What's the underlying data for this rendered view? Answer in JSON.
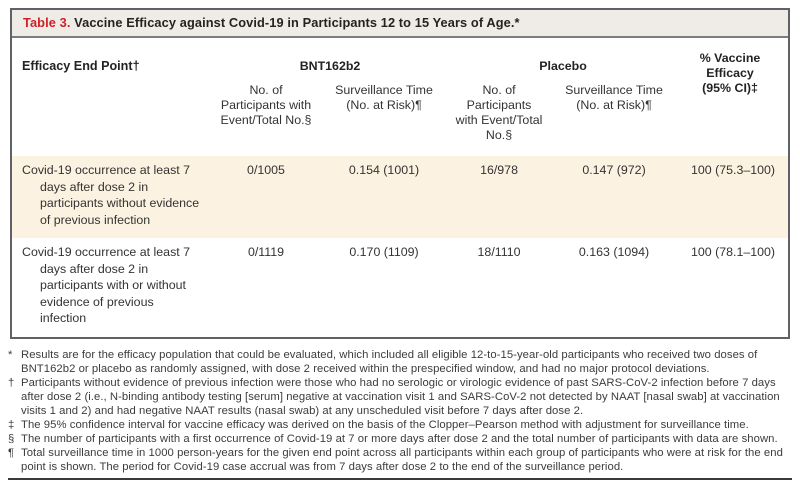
{
  "title": {
    "label": "Table 3.",
    "text": " Vaccine Efficacy against Covid-19 in Participants 12 to 15 Years of Age.*"
  },
  "colors": {
    "accent_red": "#ce2127",
    "title_bar_bg": "#efece7",
    "highlight_row_bg": "#fcf2e1",
    "border_dark": "#606164"
  },
  "table": {
    "row_header": "Efficacy End Point†",
    "group_bnt": "BNT162b2",
    "group_placebo": "Placebo",
    "efficacy_header_line1": "% Vaccine Efficacy",
    "efficacy_header_line2": "(95% CI)‡",
    "subheader_events": "No. of Participants with Event/Total No.§",
    "subheader_surveillance": "Surveillance Time (No. at Risk)¶",
    "rows": [
      {
        "label": "Covid-19 occurrence at least 7 days after dose 2 in participants without evidence of previous infection",
        "bnt_events": "0/1005",
        "bnt_surveillance": "0.154 (1001)",
        "placebo_events": "16/978",
        "placebo_surveillance": "0.147 (972)",
        "efficacy": "100 (75.3–100)"
      },
      {
        "label": "Covid-19 occurrence at least 7 days after dose 2 in participants with or without evidence of previous infection",
        "bnt_events": "0/1119",
        "bnt_surveillance": "0.170 (1109)",
        "placebo_events": "18/1110",
        "placebo_surveillance": "0.163 (1094)",
        "efficacy": "100 (78.1–100)"
      }
    ]
  },
  "footnotes": [
    {
      "symbol": "*",
      "text": "Results are for the efficacy population that could be evaluated, which included all eligible 12-to-15-year-old participants who received two doses of BNT162b2 or placebo as randomly assigned, with dose 2 received within the prespecified window, and had no major protocol deviations."
    },
    {
      "symbol": "†",
      "text": "Participants without evidence of previous infection were those who had no serologic or virologic evidence of past SARS-CoV-2 infection before 7 days after dose 2 (i.e., N-binding antibody testing [serum] negative at vaccination visit 1 and SARS-CoV-2 not detected by NAAT [nasal swab] at vaccination visits 1 and 2) and had negative NAAT results (nasal swab) at any unscheduled visit before 7 days after dose 2."
    },
    {
      "symbol": "‡",
      "text": "The 95% confidence interval for vaccine efficacy was derived on the basis of the Clopper–Pearson method with adjustment for surveillance time."
    },
    {
      "symbol": "§",
      "text": "The number of participants with a first occurrence of Covid-19 at 7 or more days after dose 2 and the total number of participants with data are shown."
    },
    {
      "symbol": "¶",
      "text": "Total surveillance time in 1000 person-years for the given end point across all participants within each group of participants who were at risk for the end point is shown. The period for Covid-19 case accrual was from 7 days after dose 2 to the end of the surveillance period."
    }
  ]
}
